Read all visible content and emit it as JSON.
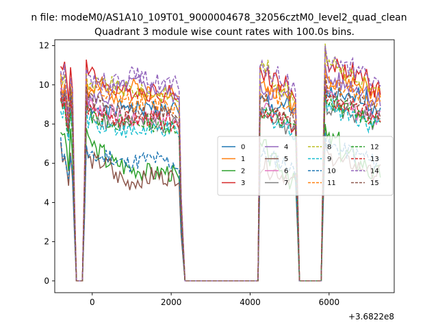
{
  "chart_data": {
    "type": "line",
    "suptitle": "n file: modeM0/AS1A10_109T01_9000004678_32056cztM0_level2_quad_clean",
    "title": "Quadrant 3 module wise count rates with 100.0s bins.",
    "xlabel": "",
    "ylabel": "",
    "offset_text": "+3.6822e8",
    "xlim": [
      -950,
      7650
    ],
    "ylim": [
      -0.6,
      12.3
    ],
    "xticks": [
      0,
      2000,
      4000,
      6000
    ],
    "yticks": [
      0,
      2,
      4,
      6,
      8,
      10,
      12
    ],
    "grid": false,
    "legend": {
      "placement": "center-right",
      "columns": 4
    },
    "series": [
      {
        "name": "0",
        "color": "#1f77b4",
        "dashed": false,
        "profile": [
          8.8,
          8.9,
          8.5,
          8.8,
          9.0,
          8.7,
          8.8,
          8.9,
          8.7,
          8.8
        ],
        "post": [
          9.5,
          9.2,
          9.4,
          8.9
        ],
        "seed": 1
      },
      {
        "name": "1",
        "color": "#ff7f0e",
        "dashed": false,
        "profile": [
          9.5,
          9.8,
          9.6,
          9.5,
          9.8,
          9.9,
          9.6,
          9.4,
          9.8,
          9.7
        ],
        "post": [
          10.3,
          10.1,
          10.0,
          9.5
        ],
        "seed": 2
      },
      {
        "name": "2",
        "color": "#2ca02c",
        "dashed": false,
        "profile": [
          7.0,
          6.6,
          6.1,
          6.0,
          5.8,
          5.7,
          5.6,
          5.5,
          5.6,
          5.5
        ],
        "post": [
          7.2,
          6.5,
          6.0,
          5.5
        ],
        "seed": 3
      },
      {
        "name": "3",
        "color": "#d62728",
        "dashed": false,
        "profile": [
          10.5,
          10.3,
          9.8,
          9.8,
          9.6,
          9.7,
          9.6,
          9.7,
          9.5,
          9.6
        ],
        "post": [
          11.0,
          10.7,
          10.4,
          9.8
        ],
        "seed": 4
      },
      {
        "name": "4",
        "color": "#9467bd",
        "dashed": false,
        "profile": [
          9.2,
          9.4,
          9.3,
          9.8,
          10.0,
          10.1,
          9.9,
          9.8,
          9.7,
          9.5
        ],
        "post": [
          10.2,
          10.0,
          9.8,
          9.3
        ],
        "seed": 5
      },
      {
        "name": "5",
        "color": "#8c564b",
        "dashed": false,
        "profile": [
          6.1,
          6.0,
          5.9,
          5.3,
          5.0,
          5.1,
          5.2,
          5.4,
          5.3,
          5.3
        ],
        "post": [
          6.3,
          6.0,
          5.8,
          5.5
        ],
        "seed": 6
      },
      {
        "name": "6",
        "color": "#e377c2",
        "dashed": false,
        "profile": [
          9.0,
          8.8,
          8.6,
          8.4,
          8.3,
          8.2,
          8.4,
          8.3,
          8.2,
          8.3
        ],
        "post": [
          9.3,
          8.9,
          8.6,
          8.3
        ],
        "seed": 7
      },
      {
        "name": "7",
        "color": "#7f7f7f",
        "dashed": false,
        "profile": [
          8.5,
          8.3,
          8.1,
          8.0,
          7.9,
          8.0,
          8.1,
          8.0,
          7.9,
          8.0
        ],
        "post": [
          8.9,
          8.6,
          8.3,
          8.0
        ],
        "seed": 8
      },
      {
        "name": "8",
        "color": "#bcbd22",
        "dashed": true,
        "profile": [
          9.8,
          10.0,
          10.0,
          9.8,
          9.8,
          9.7,
          9.6,
          9.6,
          9.5,
          9.4
        ],
        "post": [
          11.3,
          10.6,
          10.2,
          9.6
        ],
        "seed": 9
      },
      {
        "name": "9",
        "color": "#17becf",
        "dashed": true,
        "profile": [
          8.2,
          8.0,
          7.9,
          7.8,
          7.6,
          7.6,
          7.7,
          7.6,
          7.7,
          7.6
        ],
        "post": [
          8.9,
          8.6,
          8.3,
          8.0
        ],
        "seed": 10
      },
      {
        "name": "10",
        "color": "#1f77b4",
        "dashed": true,
        "profile": [
          6.2,
          6.3,
          6.4,
          6.1,
          6.0,
          6.1,
          6.2,
          6.2,
          6.1,
          6.0
        ],
        "post": [
          6.8,
          6.6,
          6.4,
          6.1
        ],
        "seed": 11
      },
      {
        "name": "11",
        "color": "#ff7f0e",
        "dashed": true,
        "profile": [
          9.6,
          9.5,
          9.4,
          9.3,
          9.2,
          9.1,
          9.1,
          9.0,
          9.0,
          8.9
        ],
        "post": [
          10.0,
          9.8,
          9.5,
          9.2
        ],
        "seed": 12
      },
      {
        "name": "12",
        "color": "#2ca02c",
        "dashed": true,
        "profile": [
          8.4,
          8.3,
          8.2,
          8.1,
          8.0,
          8.0,
          8.1,
          8.0,
          8.0,
          7.9
        ],
        "post": [
          9.0,
          8.8,
          8.5,
          8.2
        ],
        "seed": 13
      },
      {
        "name": "13",
        "color": "#d62728",
        "dashed": true,
        "profile": [
          8.6,
          8.5,
          8.4,
          8.3,
          8.2,
          8.2,
          8.3,
          8.2,
          8.2,
          8.1
        ],
        "post": [
          9.1,
          8.9,
          8.6,
          8.3
        ],
        "seed": 14
      },
      {
        "name": "14",
        "color": "#9467bd",
        "dashed": true,
        "profile": [
          10.1,
          10.2,
          10.0,
          10.3,
          10.4,
          10.5,
          10.3,
          10.2,
          10.1,
          10.0
        ],
        "post": [
          11.2,
          10.9,
          10.6,
          10.2
        ],
        "seed": 15
      },
      {
        "name": "15",
        "color": "#8c564b",
        "dashed": true,
        "profile": [
          9.2,
          9.0,
          8.8,
          8.7,
          8.6,
          8.6,
          8.7,
          8.6,
          8.6,
          8.5
        ],
        "post": [
          9.6,
          9.3,
          9.0,
          8.7
        ],
        "seed": 16
      }
    ],
    "segments": [
      {
        "start": -900,
        "end": -500,
        "level": "on"
      },
      {
        "start": -450,
        "end": -250,
        "level": "zero"
      },
      {
        "start": -250,
        "end": -100,
        "level": "ramp"
      },
      {
        "start": -150,
        "end": 2200,
        "level": "on"
      },
      {
        "start": 2250,
        "end": 4200,
        "level": "zero"
      },
      {
        "start": 4250,
        "end": 5200,
        "level": "on"
      },
      {
        "start": 5250,
        "end": 5800,
        "level": "zero"
      },
      {
        "start": 5900,
        "end": 7300,
        "level": "on"
      }
    ]
  }
}
